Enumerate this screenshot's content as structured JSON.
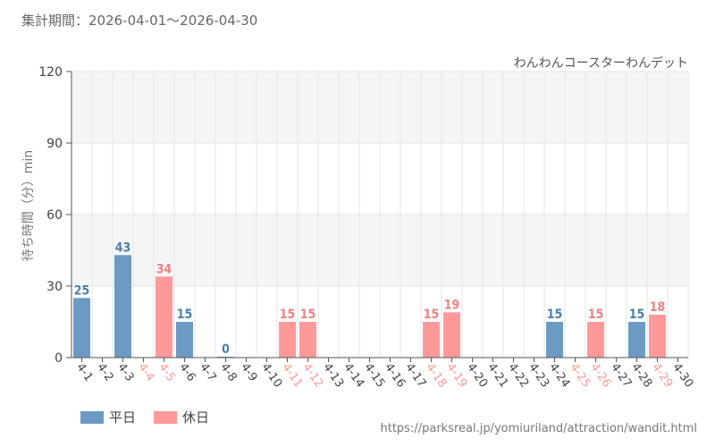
{
  "header": {
    "period_label": "集計期間：2026-04-01～2026-04-30"
  },
  "footer": {
    "source_url": "https://parksreal.jp/yomiuriland/attraction/wandit.html"
  },
  "colors": {
    "weekday": "#6b9bc3",
    "holiday": "#ff9999",
    "weekday_text": "#4a7fab",
    "holiday_text": "#f07f7f",
    "band": "#f5f5f5",
    "grid": "#e6e6e6",
    "axis": "#555555"
  },
  "chart_data": {
    "type": "bar",
    "title": "わんわんコースターわんデット",
    "ylabel": "待ち時間（分）min",
    "xlabel": "",
    "ylim": [
      0,
      120
    ],
    "yticks": [
      0,
      30,
      60,
      90,
      120
    ],
    "grid": true,
    "legend": {
      "position": "bottom-left",
      "entries": [
        {
          "key": "weekday",
          "label": "平日"
        },
        {
          "key": "holiday",
          "label": "休日"
        }
      ]
    },
    "categories": [
      "4-1",
      "4-2",
      "4-3",
      "4-4",
      "4-5",
      "4-6",
      "4-7",
      "4-8",
      "4-9",
      "4-10",
      "4-11",
      "4-12",
      "4-13",
      "4-14",
      "4-15",
      "4-16",
      "4-17",
      "4-18",
      "4-19",
      "4-20",
      "4-21",
      "4-22",
      "4-23",
      "4-24",
      "4-25",
      "4-26",
      "4-27",
      "4-28",
      "4-29",
      "4-30"
    ],
    "day_types": [
      "weekday",
      "weekday",
      "weekday",
      "holiday",
      "holiday",
      "weekday",
      "weekday",
      "weekday",
      "weekday",
      "weekday",
      "holiday",
      "holiday",
      "weekday",
      "weekday",
      "weekday",
      "weekday",
      "weekday",
      "holiday",
      "holiday",
      "weekday",
      "weekday",
      "weekday",
      "weekday",
      "weekday",
      "holiday",
      "holiday",
      "weekday",
      "weekday",
      "holiday",
      "weekday"
    ],
    "values": [
      25,
      null,
      43,
      null,
      34,
      15,
      null,
      0,
      null,
      null,
      15,
      15,
      null,
      null,
      null,
      null,
      null,
      15,
      19,
      null,
      null,
      null,
      null,
      15,
      null,
      15,
      null,
      15,
      18,
      null
    ]
  }
}
